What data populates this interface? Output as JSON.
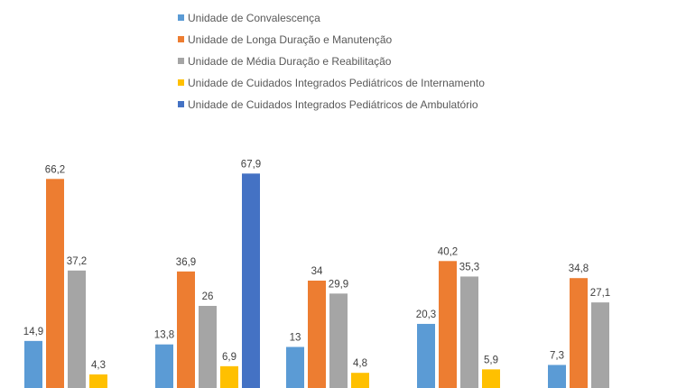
{
  "chart_data": {
    "type": "bar",
    "title": "",
    "xlabel": "",
    "ylabel": "",
    "legend_position": "top",
    "grid": false,
    "categories": [
      "",
      "",
      "",
      "",
      ""
    ],
    "ylim": [
      0,
      72
    ],
    "series": [
      {
        "name": "Unidade de Convalescença",
        "color": "#5b9bd5",
        "values": [
          14.9,
          13.8,
          13,
          20.3,
          7.3
        ],
        "labels": [
          "14,9",
          "13,8",
          "13",
          "20,3",
          "7,3"
        ]
      },
      {
        "name": "Unidade de Longa Duração e Manutenção",
        "color": "#ed7d31",
        "values": [
          66.2,
          36.9,
          34,
          40.2,
          34.8
        ],
        "labels": [
          "66,2",
          "36,9",
          "34",
          "40,2",
          "34,8"
        ]
      },
      {
        "name": "Unidade de Média Duração e Reabilitação",
        "color": "#a5a5a5",
        "values": [
          37.2,
          26,
          29.9,
          35.3,
          27.1
        ],
        "labels": [
          "37,2",
          "26",
          "29,9",
          "35,3",
          "27,1"
        ]
      },
      {
        "name": "Unidade de Cuidados Integrados Pediátricos de Internamento",
        "color": "#ffc000",
        "values": [
          4.3,
          6.9,
          4.8,
          5.9,
          null
        ],
        "labels": [
          "4,3",
          "6,9",
          "4,8",
          "5,9",
          ""
        ]
      },
      {
        "name": "Unidade de Cuidados Integrados Pediátricos de Ambulatório",
        "color": "#4472c4",
        "values": [
          null,
          67.9,
          null,
          null,
          null
        ],
        "labels": [
          "",
          "67,9",
          "",
          "",
          ""
        ]
      }
    ]
  }
}
